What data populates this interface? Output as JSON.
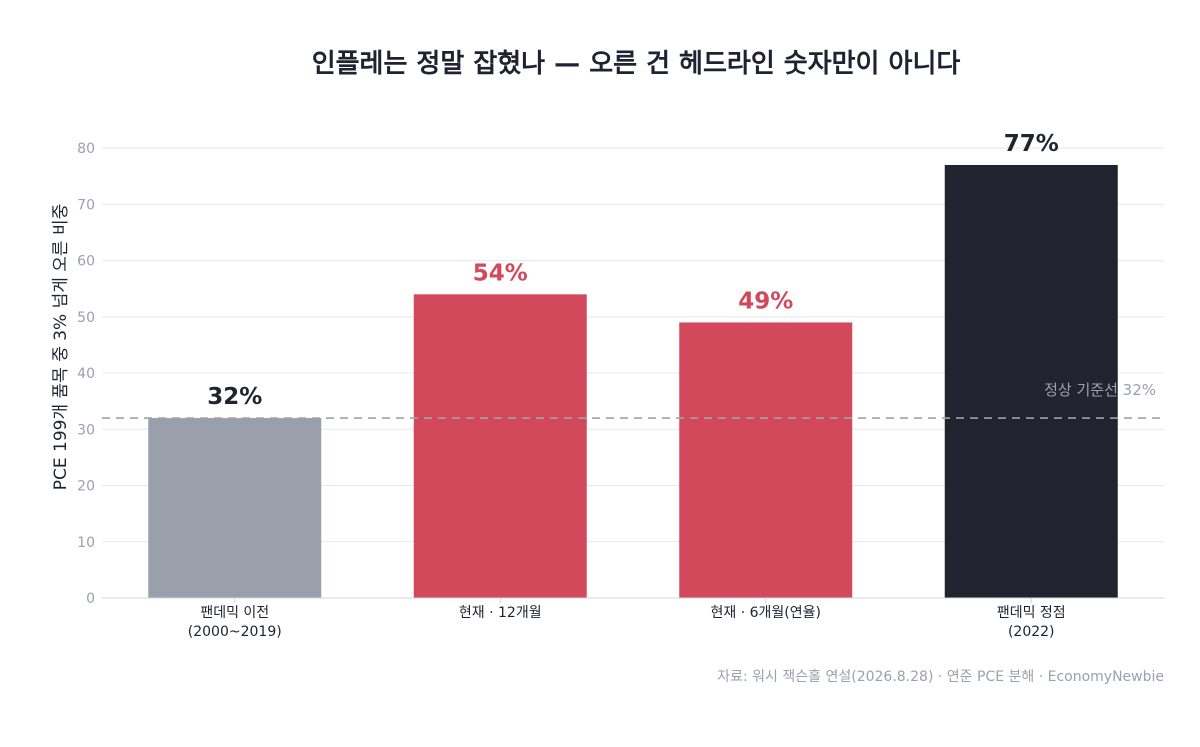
{
  "colors": {
    "title": "#1f2230",
    "grid": "#e6e8ec",
    "axis": "#d3d6dc",
    "tick": "#9aa0ad",
    "reference": "#9ea3ab",
    "gray": "#9aa0ab",
    "red": "#d2495c",
    "dark": "#21242f"
  },
  "chart_data": {
    "type": "bar",
    "title": "인플레는 정말 잡혔나 — 오른 건 헤드라인 숫자만이 아니다",
    "ylabel": "PCE 199개 품목 중 3% 넘게 오른 비중",
    "xlabel": "",
    "ylim": [
      0,
      85
    ],
    "yticks": [
      0,
      10,
      20,
      30,
      40,
      50,
      60,
      70,
      80
    ],
    "grid": true,
    "legend": "none",
    "categories": [
      [
        "팬데믹 이전",
        "(2000~2019)"
      ],
      [
        "현재 · 12개월"
      ],
      [
        "현재 · 6개월(연율)"
      ],
      [
        "팬데믹 정점",
        "(2022)"
      ]
    ],
    "values": [
      32,
      54,
      49,
      77
    ],
    "value_labels": [
      "32%",
      "54%",
      "49%",
      "77%"
    ],
    "bar_colors": [
      "#9aa0ab",
      "#d2495c",
      "#d2495c",
      "#21242f"
    ],
    "label_colors": [
      "#21242f",
      "#d2495c",
      "#d2495c",
      "#21242f"
    ],
    "reference_line": {
      "value": 32,
      "label": "정상 기준선 32%",
      "style": "dashed"
    },
    "source": "자료: 워시 잭슨홀 연설(2026.8.28) · 연준 PCE 분해 · EconomyNewbie"
  }
}
